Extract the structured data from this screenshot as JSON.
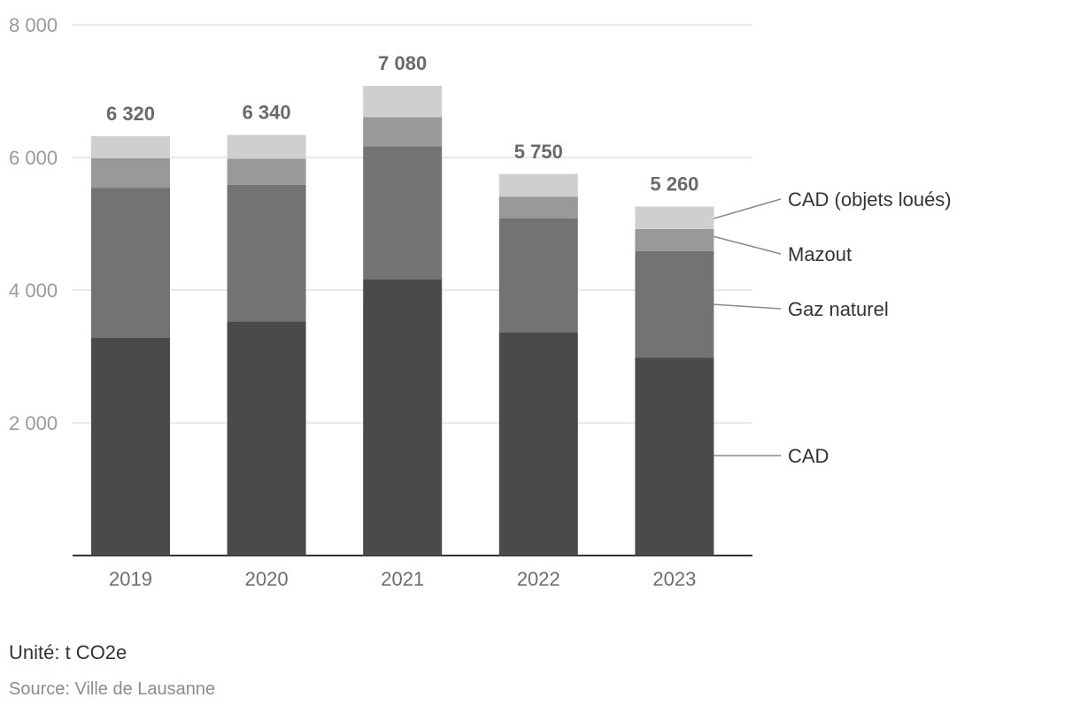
{
  "colors": {
    "grid": "#e2e2e2",
    "axis": "#333333",
    "leader": "#8a8a8a"
  },
  "chart_data": {
    "type": "bar",
    "stacked": true,
    "categories": [
      "2019",
      "2020",
      "2021",
      "2022",
      "2023"
    ],
    "series": [
      {
        "name": "CAD",
        "color": "#4a4a4a",
        "values": [
          3280,
          3530,
          4160,
          3360,
          2980
        ]
      },
      {
        "name": "Gaz naturel",
        "color": "#737373",
        "values": [
          2260,
          2060,
          2010,
          1720,
          1610
        ]
      },
      {
        "name": "Mazout",
        "color": "#999999",
        "values": [
          450,
          390,
          440,
          330,
          330
        ]
      },
      {
        "name": "CAD (objets loués)",
        "color": "#cfcfcf",
        "values": [
          330,
          360,
          470,
          340,
          340
        ]
      }
    ],
    "totals": [
      6320,
      6340,
      7080,
      5750,
      5260
    ],
    "total_labels": [
      "6 320",
      "6 340",
      "7 080",
      "5 750",
      "5 260"
    ],
    "y_ticks": [
      2000,
      4000,
      6000,
      8000
    ],
    "y_tick_labels": [
      "2 000",
      "4 000",
      "6 000",
      "8 000"
    ],
    "ylim": [
      0,
      8000
    ],
    "grid": true,
    "legend": "right, leader lines from last bar"
  },
  "footer": {
    "unit": "Unité: t CO2e",
    "source": "Source: Ville de Lausanne"
  }
}
